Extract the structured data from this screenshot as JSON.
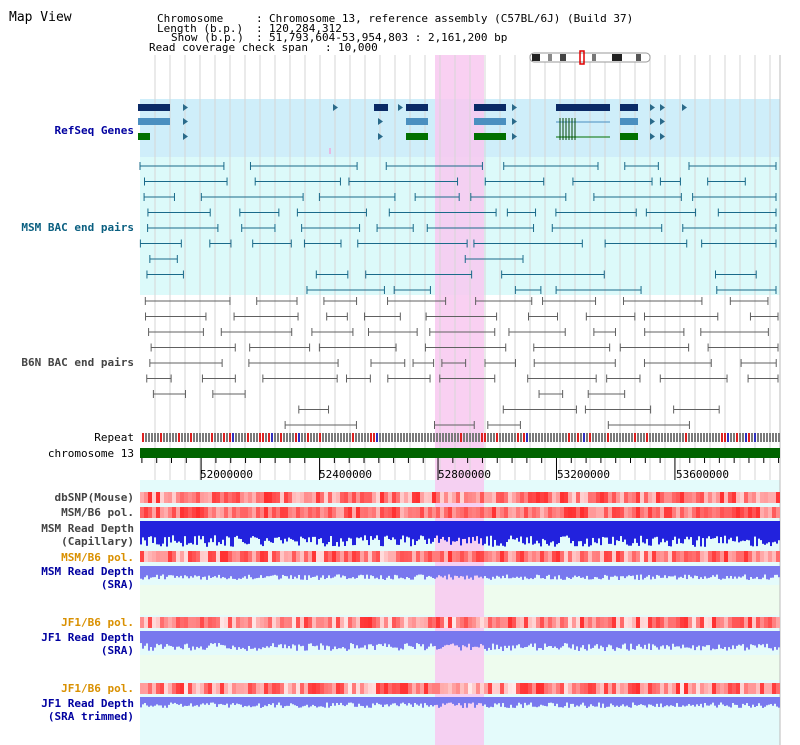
{
  "page": {
    "title": "Map View"
  },
  "info": {
    "chromosome_key": "Chromosome",
    "chromosome_val": "Chromosome 13, reference assembly (C57BL/6J) (Build 37)",
    "length_key": "Length (b.p.)",
    "length_val": "120,284,312",
    "show_key": "Show (b.p.)",
    "show_val": "51,793,604-53,954,803 : 2,161,200 bp",
    "coverage_key": "Read coverage check span",
    "coverage_val": "10,000"
  },
  "tracks": {
    "refseq": "RefSeq Genes",
    "msm_bac": "MSM BAC end pairs",
    "b6n_bac": "B6N BAC end pairs",
    "repeat": "Repeat",
    "chromosome": "chromosome 13",
    "dbsnp": "dbSNP(Mouse)",
    "msm_b6_pol_1": "MSM/B6 pol.",
    "msm_depth_cap_1": "MSM Read Depth",
    "msm_depth_cap_2": "(Capillary)",
    "msm_b6_pol_2": "MSM/B6 pol.",
    "msm_depth_sra_1": "MSM Read Depth",
    "msm_depth_sra_2": "(SRA)",
    "jf1_b6_pol_1": "JF1/B6 pol.",
    "jf1_depth_sra_1": "JF1 Read Depth",
    "jf1_depth_sra_2": "(SRA)",
    "jf1_b6_pol_2": "JF1/B6 pol.",
    "jf1_depth_trim_1": "JF1 Read Depth",
    "jf1_depth_trim_2": "(SRA trimmed)"
  },
  "axis": {
    "ticks": [
      "52000000",
      "52400000",
      "52800000",
      "53200000",
      "53600000"
    ],
    "tick_values": [
      52000000,
      52400000,
      52800000,
      53200000,
      53600000
    ],
    "start": 51793604,
    "end": 53954803
  },
  "colors": {
    "highlight": "#f8c8f0",
    "refseq_bg": "#cfeefa",
    "msm_bg": "#dcfafa",
    "b6n_bg": "#ffffff",
    "chrom_bar": "#006400",
    "depth_blue": "#2222dd",
    "depth_violet": "#7878ee",
    "pol_red": "#ee3333"
  }
}
